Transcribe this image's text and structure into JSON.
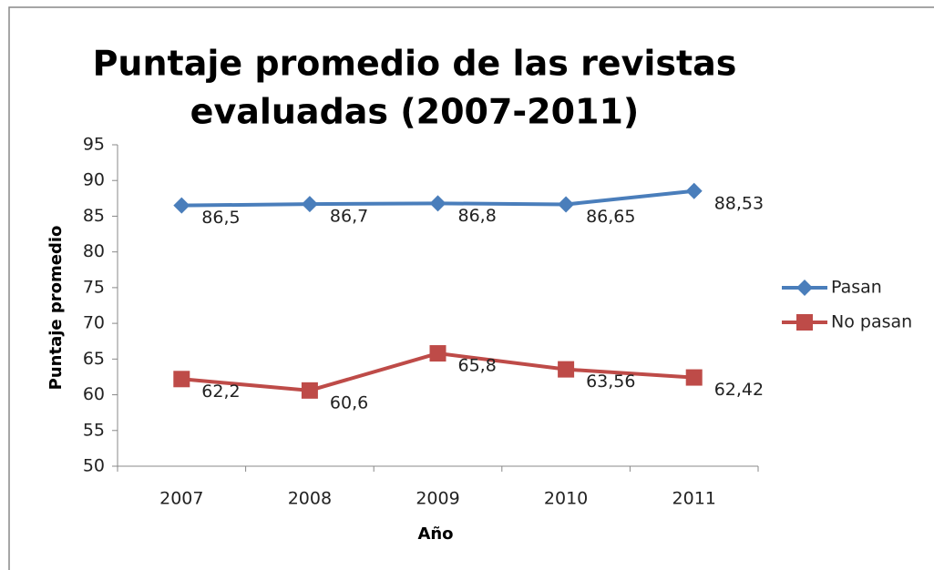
{
  "chart_data": {
    "type": "line",
    "title": [
      "Puntaje promedio de las revistas",
      "evaluadas (2007-2011)"
    ],
    "x_label": "Año",
    "y_label": "Puntaje promedio",
    "categories": [
      "2007",
      "2008",
      "2009",
      "2010",
      "2011"
    ],
    "series": [
      {
        "name": "Pasan",
        "color": "#4a7ebb",
        "marker": "diamond",
        "values": [
          86.5,
          86.7,
          86.8,
          86.65,
          88.53
        ],
        "value_labels": [
          "86,5",
          "86,7",
          "86,8",
          "86,65",
          "88,53"
        ]
      },
      {
        "name": "No pasan",
        "color": "#be4b48",
        "marker": "square",
        "values": [
          62.2,
          60.6,
          65.8,
          63.56,
          62.42
        ],
        "value_labels": [
          "62,2",
          "60,6",
          "65,8",
          "63,56",
          "62,42"
        ]
      }
    ],
    "ylim": [
      50,
      95
    ],
    "yticks": [
      50,
      55,
      60,
      65,
      70,
      75,
      80,
      85,
      90,
      95
    ],
    "grid": false,
    "legend": "right"
  }
}
